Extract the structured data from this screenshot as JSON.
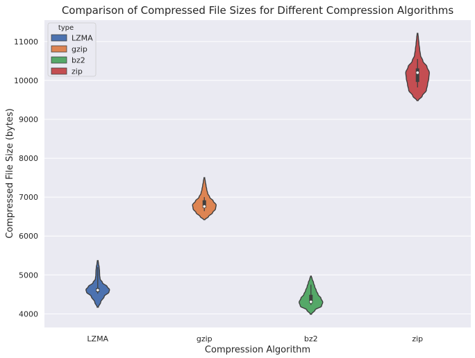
{
  "chart_data": {
    "type": "violin",
    "title": "Comparison of Compressed File Sizes for Different Compression Algorithms",
    "xlabel": "Compression Algorithm",
    "ylabel": "Compressed File Size (bytes)",
    "categories": [
      "LZMA",
      "gzip",
      "bz2",
      "zip"
    ],
    "ylim": [
      3650,
      11550
    ],
    "yticks": [
      4000,
      5000,
      6000,
      7000,
      8000,
      9000,
      10000,
      11000
    ],
    "grid": true,
    "legend": {
      "title": "type",
      "placement": "top-left",
      "entries": [
        "LZMA",
        "gzip",
        "bz2",
        "zip"
      ]
    },
    "series": [
      {
        "name": "LZMA",
        "color": "#4c72b0",
        "min": 4170,
        "max": 5370,
        "q1": 4560,
        "median": 4610,
        "q3": 4660,
        "whisker_low": 4520,
        "whisker_high": 5200,
        "density": [
          [
            4170,
            0.05
          ],
          [
            4300,
            0.25
          ],
          [
            4450,
            0.55
          ],
          [
            4560,
            0.95
          ],
          [
            4620,
            1.0
          ],
          [
            4700,
            0.8
          ],
          [
            4800,
            0.4
          ],
          [
            4900,
            0.2
          ],
          [
            5000,
            0.16
          ],
          [
            5100,
            0.15
          ],
          [
            5200,
            0.12
          ],
          [
            5300,
            0.06
          ],
          [
            5370,
            0.03
          ]
        ]
      },
      {
        "name": "gzip",
        "color": "#dd8452",
        "min": 6420,
        "max": 7500,
        "q1": 6720,
        "median": 6760,
        "q3": 6920,
        "whisker_low": 6640,
        "whisker_high": 7000,
        "density": [
          [
            6420,
            0.05
          ],
          [
            6500,
            0.35
          ],
          [
            6600,
            0.7
          ],
          [
            6700,
            0.95
          ],
          [
            6800,
            1.0
          ],
          [
            6900,
            0.75
          ],
          [
            7000,
            0.45
          ],
          [
            7100,
            0.28
          ],
          [
            7200,
            0.2
          ],
          [
            7300,
            0.14
          ],
          [
            7400,
            0.08
          ],
          [
            7500,
            0.03
          ]
        ]
      },
      {
        "name": "bz2",
        "color": "#55a868",
        "min": 3990,
        "max": 4970,
        "q1": 4270,
        "median": 4310,
        "q3": 4490,
        "whisker_low": 4230,
        "whisker_high": 4750,
        "density": [
          [
            3990,
            0.05
          ],
          [
            4100,
            0.35
          ],
          [
            4200,
            0.9
          ],
          [
            4300,
            1.0
          ],
          [
            4400,
            0.85
          ],
          [
            4500,
            0.6
          ],
          [
            4600,
            0.45
          ],
          [
            4700,
            0.32
          ],
          [
            4800,
            0.22
          ],
          [
            4900,
            0.1
          ],
          [
            4970,
            0.03
          ]
        ]
      },
      {
        "name": "zip",
        "color": "#c44e52",
        "min": 9480,
        "max": 11210,
        "q1": 9960,
        "median": 10200,
        "q3": 10310,
        "whisker_low": 9820,
        "whisker_high": 10550,
        "density": [
          [
            9480,
            0.05
          ],
          [
            9600,
            0.4
          ],
          [
            9750,
            0.75
          ],
          [
            9900,
            0.85
          ],
          [
            10050,
            0.95
          ],
          [
            10200,
            1.0
          ],
          [
            10350,
            0.8
          ],
          [
            10500,
            0.45
          ],
          [
            10650,
            0.25
          ],
          [
            10800,
            0.18
          ],
          [
            10950,
            0.12
          ],
          [
            11100,
            0.07
          ],
          [
            11210,
            0.03
          ]
        ]
      }
    ]
  }
}
